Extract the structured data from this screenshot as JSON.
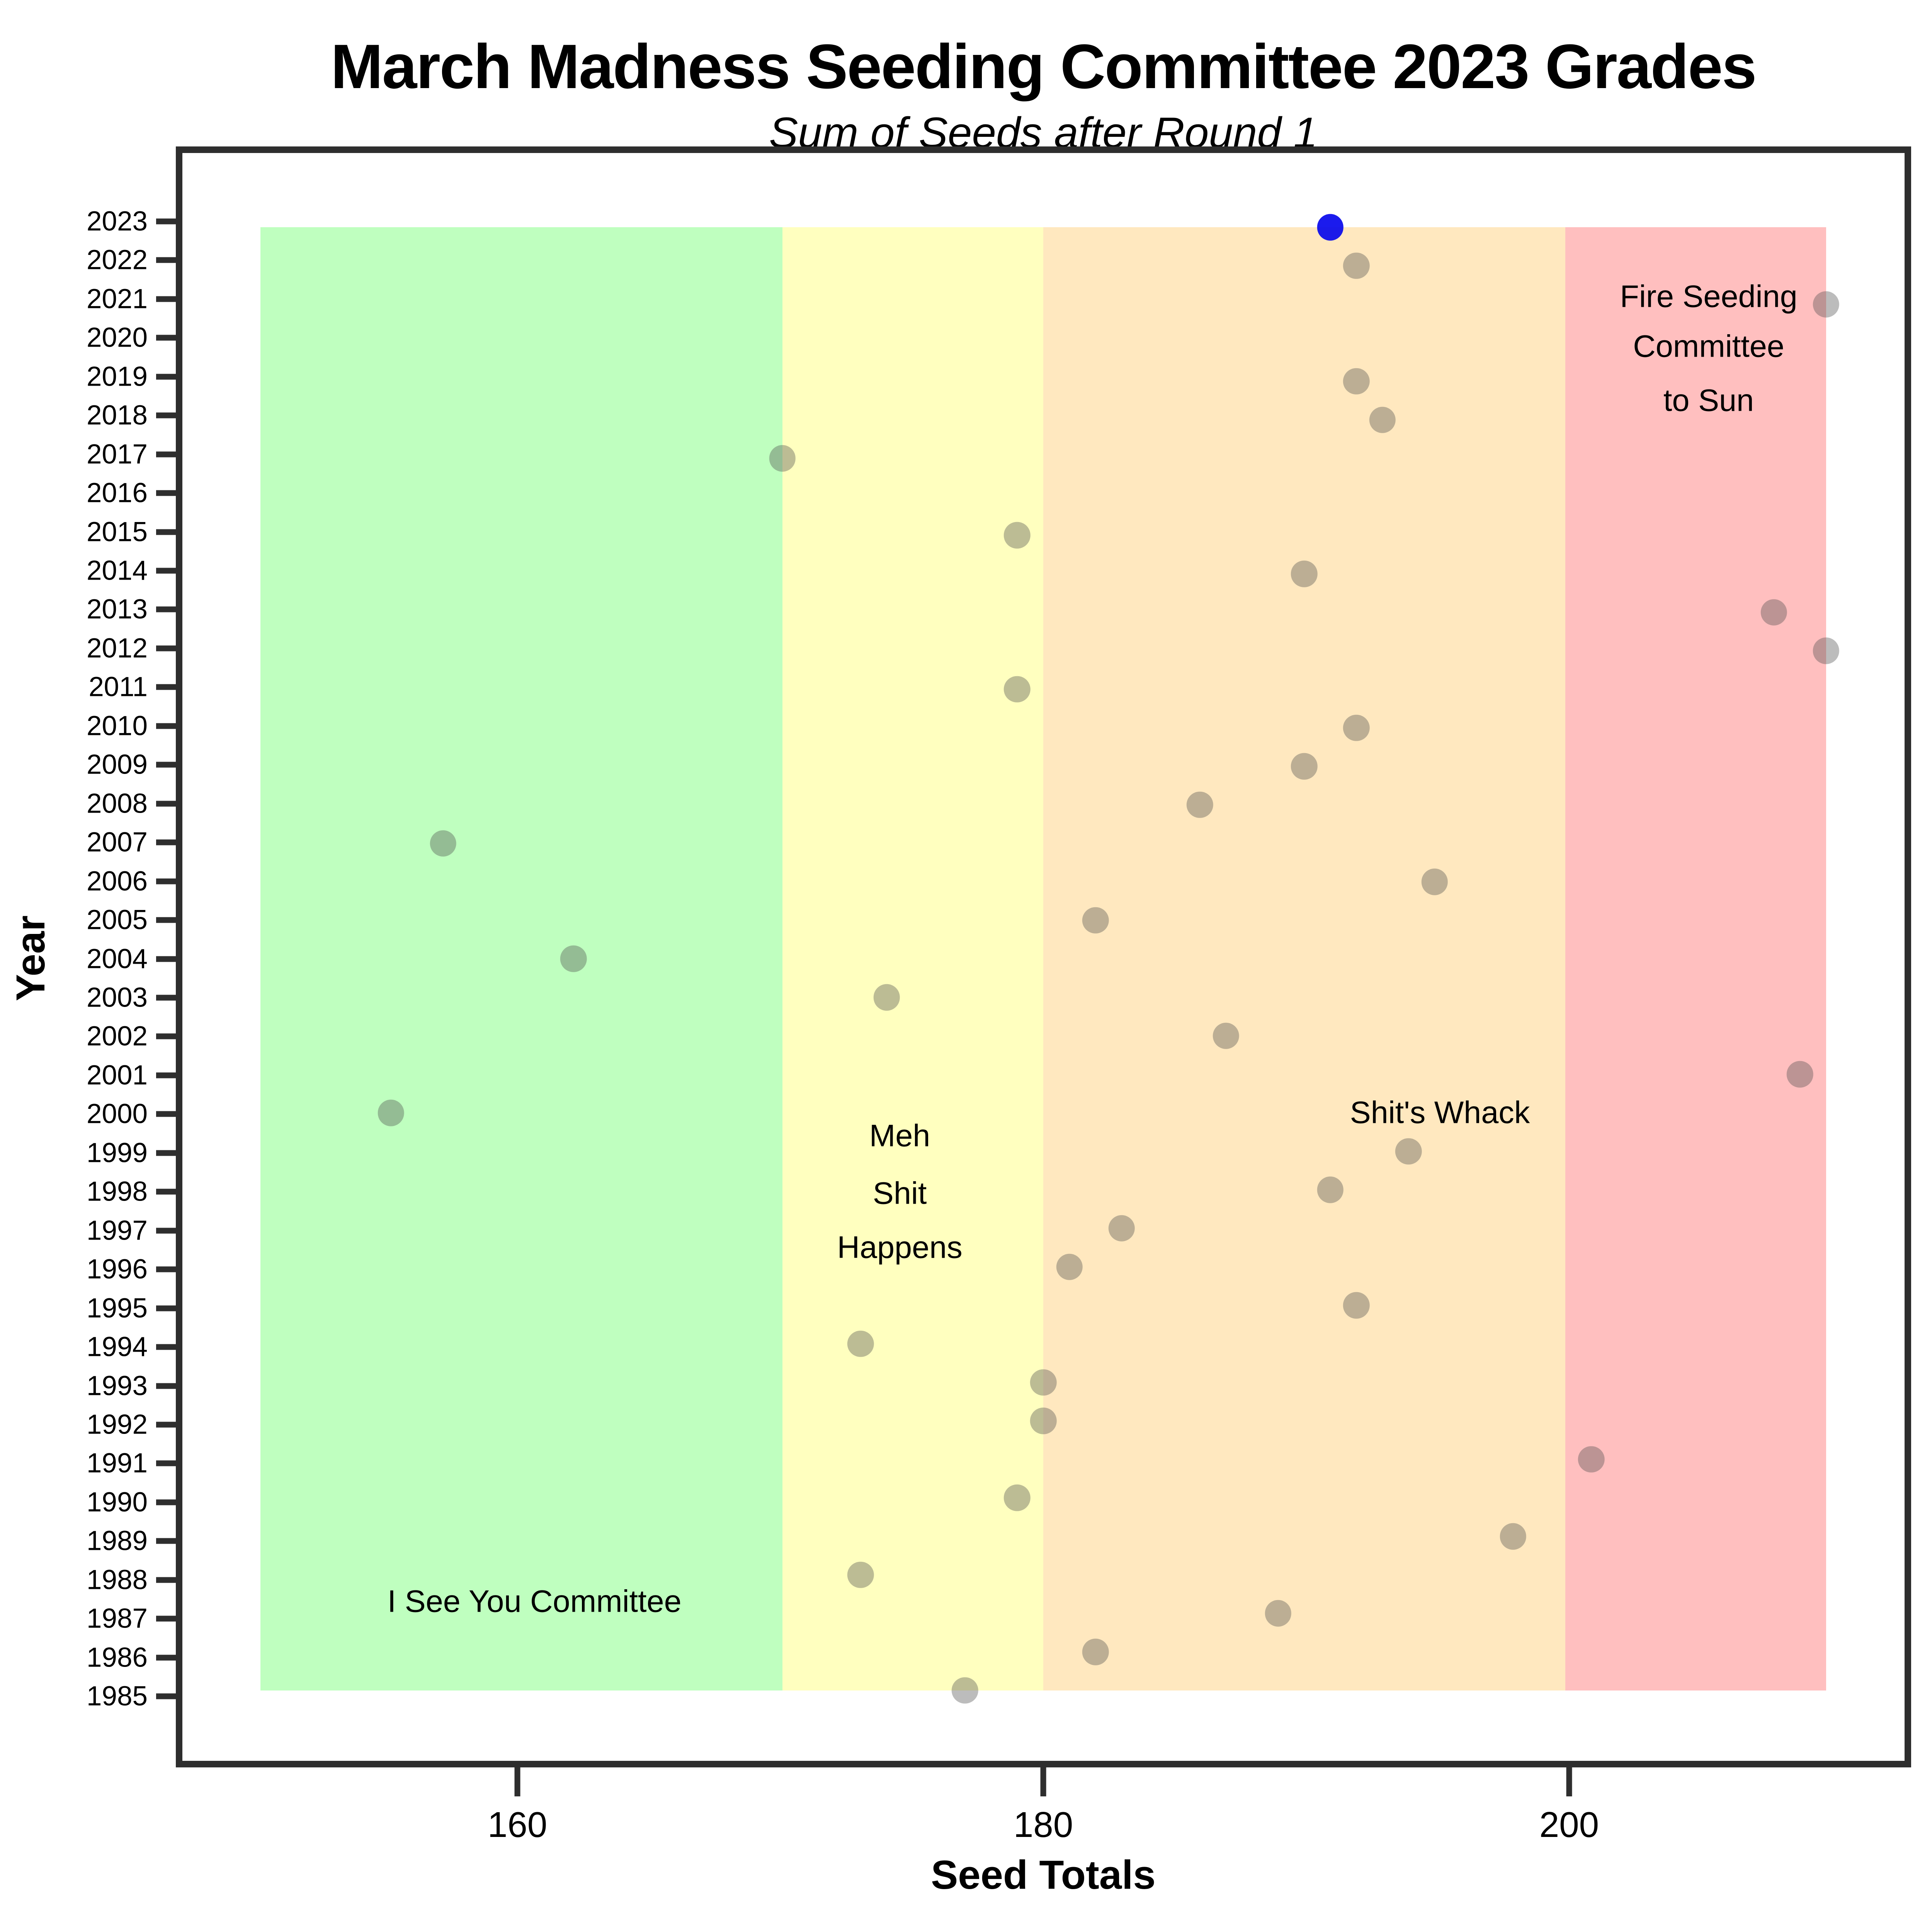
{
  "title": "March Madness Seeding Committee 2023 Grades",
  "subtitle": "Sum of Seeds after Round 1",
  "chart_data": {
    "type": "scatter",
    "title": "March Madness Seeding Committee 2023 Grades",
    "subtitle": "Sum of Seeds after Round 1",
    "xlabel": "Seed Totals",
    "ylabel": "Year",
    "xlim": [
      147,
      213
    ],
    "x_ticks": [
      160,
      180,
      200
    ],
    "y_ticks": [
      2023,
      2022,
      2021,
      2020,
      2019,
      2018,
      2017,
      2016,
      2015,
      2014,
      2013,
      2012,
      2011,
      2010,
      2009,
      2008,
      2007,
      2006,
      2005,
      2004,
      2003,
      2002,
      2001,
      2000,
      1999,
      1998,
      1997,
      1996,
      1995,
      1994,
      1993,
      1992,
      1991,
      1990,
      1989,
      1988,
      1987,
      1986,
      1985
    ],
    "years_without_points": [
      2020,
      2016
    ],
    "grid": false,
    "point_color": "rgba(80,80,80,0.38)",
    "highlight_color": "rgba(8,8,235,0.92)",
    "axis_color": "#2e2e2e",
    "band_year_span": [
      1985,
      2023
    ],
    "zones": [
      {
        "name": "green-zone",
        "from": 150,
        "to": 170,
        "color": "rgba(0,255,0,0.25)"
      },
      {
        "name": "yellow-zone",
        "from": 170,
        "to": 180,
        "color": "rgba(255,255,0,0.25)"
      },
      {
        "name": "orange-zone",
        "from": 180,
        "to": 200,
        "color": "rgba(255,165,0,0.25)"
      },
      {
        "name": "red-zone",
        "from": 200,
        "to": 210,
        "color": "rgba(255,0,0,0.25)"
      }
    ],
    "annotations": [
      {
        "zone": "green-zone",
        "x": 160.5,
        "lines": [
          {
            "text": "I See You Committee",
            "y": 1987.3
          }
        ]
      },
      {
        "zone": "yellow-zone",
        "x": 174.5,
        "lines": [
          {
            "text": "Meh",
            "y": 1999.4
          },
          {
            "text": "Shit",
            "y": 1997.9
          },
          {
            "text": "Happens",
            "y": 1996.5
          }
        ]
      },
      {
        "zone": "orange-zone",
        "x": 195.2,
        "lines": [
          {
            "text": "Shit's Whack",
            "y": 2000.0
          }
        ]
      },
      {
        "zone": "red-zone",
        "x": 205.5,
        "lines": [
          {
            "text": "Fire Seeding",
            "y": 2021.2
          },
          {
            "text": "Committee",
            "y": 2019.9
          },
          {
            "text": "to Sun",
            "y": 2018.5
          }
        ]
      }
    ],
    "points": [
      {
        "year": 2023,
        "value": 191,
        "highlight": true
      },
      {
        "year": 2022,
        "value": 192
      },
      {
        "year": 2021,
        "value": 210
      },
      {
        "year": 2019,
        "value": 192
      },
      {
        "year": 2018,
        "value": 193
      },
      {
        "year": 2017,
        "value": 170
      },
      {
        "year": 2015,
        "value": 179
      },
      {
        "year": 2014,
        "value": 190
      },
      {
        "year": 2013,
        "value": 208
      },
      {
        "year": 2012,
        "value": 210
      },
      {
        "year": 2011,
        "value": 179
      },
      {
        "year": 2010,
        "value": 192
      },
      {
        "year": 2009,
        "value": 190
      },
      {
        "year": 2008,
        "value": 186
      },
      {
        "year": 2007,
        "value": 157
      },
      {
        "year": 2006,
        "value": 195
      },
      {
        "year": 2005,
        "value": 182
      },
      {
        "year": 2004,
        "value": 162
      },
      {
        "year": 2003,
        "value": 174
      },
      {
        "year": 2002,
        "value": 187
      },
      {
        "year": 2001,
        "value": 209
      },
      {
        "year": 2000,
        "value": 155
      },
      {
        "year": 1999,
        "value": 194
      },
      {
        "year": 1998,
        "value": 191
      },
      {
        "year": 1997,
        "value": 183
      },
      {
        "year": 1996,
        "value": 181
      },
      {
        "year": 1995,
        "value": 192
      },
      {
        "year": 1994,
        "value": 173
      },
      {
        "year": 1993,
        "value": 180
      },
      {
        "year": 1992,
        "value": 180
      },
      {
        "year": 1991,
        "value": 201
      },
      {
        "year": 1990,
        "value": 179
      },
      {
        "year": 1989,
        "value": 198
      },
      {
        "year": 1988,
        "value": 173
      },
      {
        "year": 1987,
        "value": 189
      },
      {
        "year": 1986,
        "value": 182
      },
      {
        "year": 1985,
        "value": 177
      }
    ]
  }
}
